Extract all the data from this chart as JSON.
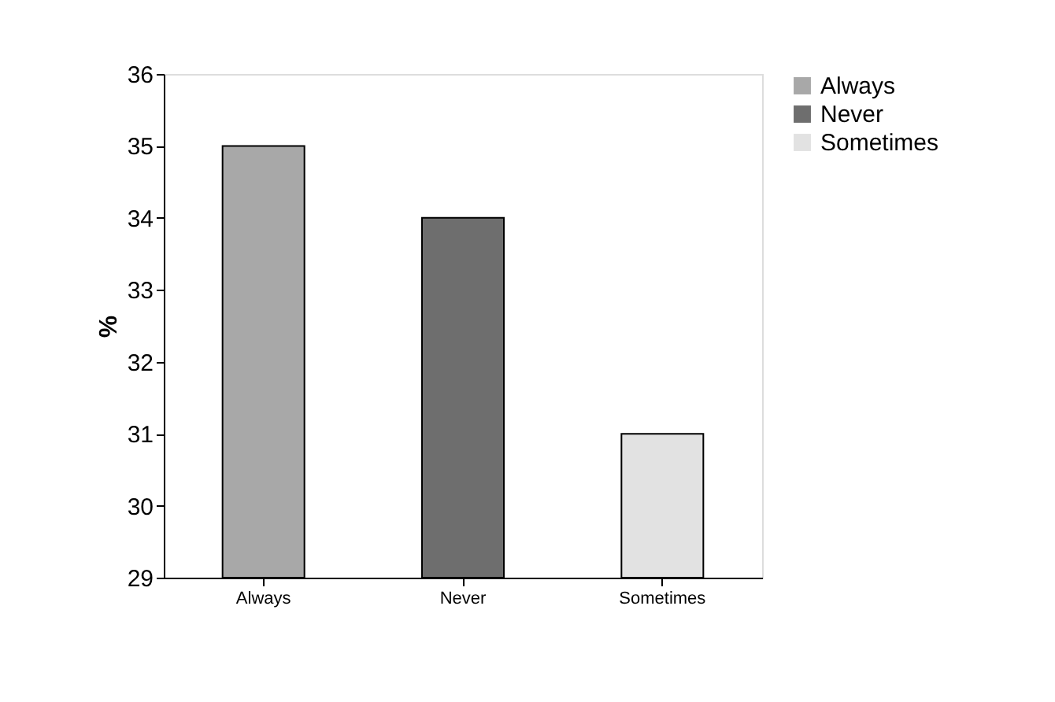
{
  "chart_data": {
    "type": "bar",
    "ylabel": "%",
    "categories": [
      "Always",
      "Never",
      "Sometimes"
    ],
    "series": [
      {
        "name": "Always",
        "color": "#a8a8a8",
        "values": [
          35,
          null,
          null
        ]
      },
      {
        "name": "Never",
        "color": "#6e6e6e",
        "values": [
          null,
          34,
          null
        ]
      },
      {
        "name": "Sometimes",
        "color": "#e2e2e2",
        "values": [
          null,
          null,
          31
        ]
      }
    ],
    "ylim": [
      29,
      36
    ],
    "yticks": [
      29,
      30,
      31,
      32,
      33,
      34,
      35,
      36
    ],
    "grid": false,
    "legend": "right"
  }
}
